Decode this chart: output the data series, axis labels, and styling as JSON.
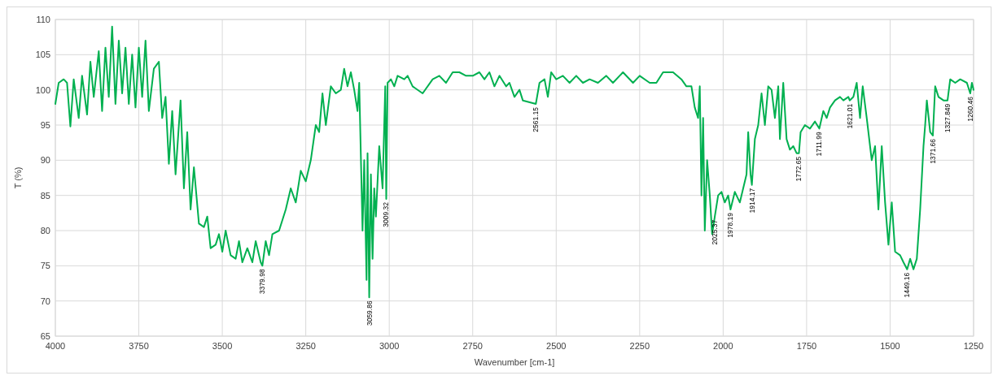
{
  "chart_data": {
    "type": "line",
    "xlabel": "Wavenumber [cm-1]",
    "ylabel": "T (%)",
    "xlim": [
      4000,
      1250
    ],
    "xticks": [
      4000,
      3750,
      3500,
      3250,
      3000,
      2750,
      2500,
      2250,
      2000,
      1750,
      1500,
      1250
    ],
    "ylim": [
      65,
      110
    ],
    "yticks": [
      65,
      70,
      75,
      80,
      85,
      90,
      95,
      100,
      105,
      110
    ],
    "grid": true,
    "marker": "none",
    "line_style": "solid",
    "series": [
      {
        "color": "#00b050",
        "x": [
          4000,
          3990,
          3975,
          3965,
          3955,
          3945,
          3930,
          3920,
          3905,
          3895,
          3885,
          3870,
          3860,
          3850,
          3840,
          3830,
          3820,
          3810,
          3800,
          3790,
          3780,
          3770,
          3760,
          3750,
          3740,
          3730,
          3720,
          3705,
          3690,
          3680,
          3670,
          3660,
          3650,
          3640,
          3625,
          3615,
          3605,
          3595,
          3585,
          3570,
          3555,
          3545,
          3535,
          3520,
          3510,
          3500,
          3490,
          3475,
          3460,
          3450,
          3440,
          3425,
          3410,
          3400,
          3385,
          3380,
          3370,
          3360,
          3350,
          3330,
          3310,
          3295,
          3280,
          3265,
          3250,
          3235,
          3220,
          3210,
          3200,
          3190,
          3175,
          3160,
          3145,
          3135,
          3125,
          3115,
          3105,
          3095,
          3090,
          3080,
          3075,
          3068,
          3065,
          3060,
          3055,
          3050,
          3045,
          3040,
          3030,
          3020,
          3012,
          3009,
          3005,
          2995,
          2985,
          2975,
          2955,
          2945,
          2930,
          2900,
          2870,
          2850,
          2830,
          2810,
          2790,
          2770,
          2750,
          2730,
          2715,
          2700,
          2685,
          2670,
          2650,
          2640,
          2625,
          2610,
          2600,
          2561,
          2550,
          2535,
          2525,
          2515,
          2500,
          2480,
          2460,
          2440,
          2420,
          2400,
          2375,
          2350,
          2330,
          2300,
          2270,
          2250,
          2220,
          2200,
          2180,
          2150,
          2125,
          2110,
          2095,
          2085,
          2075,
          2070,
          2065,
          2060,
          2055,
          2048,
          2040,
          2033,
          2025,
          2015,
          2005,
          1995,
          1985,
          1978,
          1965,
          1950,
          1940,
          1930,
          1925,
          1918,
          1914,
          1905,
          1895,
          1885,
          1875,
          1865,
          1855,
          1845,
          1835,
          1830,
          1820,
          1810,
          1800,
          1790,
          1780,
          1773,
          1768,
          1755,
          1740,
          1725,
          1712,
          1700,
          1690,
          1680,
          1665,
          1650,
          1640,
          1625,
          1621,
          1610,
          1600,
          1590,
          1582,
          1570,
          1555,
          1545,
          1535,
          1525,
          1515,
          1505,
          1495,
          1485,
          1470,
          1460,
          1449,
          1440,
          1430,
          1420,
          1410,
          1400,
          1395,
          1390,
          1380,
          1372,
          1365,
          1355,
          1340,
          1328,
          1320,
          1305,
          1290,
          1270,
          1260,
          1255,
          1250
        ],
        "values": [
          98,
          101,
          101.5,
          101,
          94.8,
          101.5,
          96,
          102,
          96.5,
          104,
          99,
          105.5,
          97,
          106,
          99,
          109,
          98,
          107,
          99.5,
          106,
          98,
          105,
          97.5,
          106,
          99,
          107,
          97,
          103,
          104,
          96,
          99,
          89.5,
          97,
          88,
          98.5,
          86,
          94,
          83,
          89,
          81,
          80.5,
          82,
          77.5,
          78,
          79.5,
          77,
          80,
          76.5,
          76,
          78.5,
          75.5,
          77.5,
          75.5,
          78.5,
          75.5,
          75,
          78.5,
          76.5,
          79.5,
          80,
          83,
          86,
          84,
          88.5,
          87,
          90,
          95,
          94,
          99.5,
          95,
          100.5,
          99.5,
          100,
          103,
          100.5,
          102.5,
          100,
          97,
          101,
          80,
          90,
          73,
          91,
          70.5,
          88,
          76,
          86,
          82,
          92,
          86,
          100.5,
          84.5,
          101,
          101.5,
          100.5,
          102,
          101.5,
          102,
          100.5,
          99.5,
          101.5,
          102,
          101,
          102.5,
          102.5,
          102,
          102,
          102.5,
          101.5,
          102.5,
          100.5,
          102,
          100.5,
          101,
          99,
          100,
          98.5,
          98,
          101,
          101.5,
          99,
          102.5,
          101.5,
          102,
          101,
          102,
          101,
          101.5,
          101,
          102,
          101,
          102.5,
          101,
          102,
          101,
          101,
          102.5,
          102.5,
          101.5,
          100.5,
          100.5,
          97.5,
          96,
          100.5,
          85,
          96,
          80,
          90,
          85,
          79.5,
          82,
          85,
          85.5,
          84,
          85,
          83,
          85.5,
          84,
          86,
          88,
          94,
          88,
          86.5,
          93,
          95,
          99.5,
          95,
          100.5,
          100,
          96,
          100.5,
          93,
          101,
          93,
          91.5,
          92,
          91,
          91,
          94,
          95,
          94.5,
          95.5,
          94.5,
          97,
          96,
          97.5,
          98.5,
          99,
          98.5,
          99,
          98.5,
          99,
          101,
          96,
          100.5,
          96,
          90,
          92,
          83,
          92,
          84,
          78,
          84,
          77,
          76.5,
          75.5,
          74.5,
          76,
          74.5,
          76,
          83,
          92,
          95,
          98.5,
          94,
          93.5,
          100.5,
          99,
          98.5,
          98.5,
          101.5,
          101,
          101.5,
          101,
          99.5,
          101,
          100
        ]
      }
    ],
    "annotations": [
      {
        "text": "3379.98",
        "x": 3380,
        "y": 75
      },
      {
        "text": "3059.86",
        "x": 3060,
        "y": 70.5
      },
      {
        "text": "3009.32",
        "x": 3009,
        "y": 84.5
      },
      {
        "text": "2561.15",
        "x": 2561,
        "y": 98
      },
      {
        "text": "2025.37",
        "x": 2025,
        "y": 82
      },
      {
        "text": "1978.19",
        "x": 1978,
        "y": 83
      },
      {
        "text": "1914.17",
        "x": 1914,
        "y": 86.5
      },
      {
        "text": "1772.65",
        "x": 1773,
        "y": 91
      },
      {
        "text": "1711.99",
        "x": 1712,
        "y": 94.5
      },
      {
        "text": "1621.01",
        "x": 1621,
        "y": 98.5
      },
      {
        "text": "1449.16",
        "x": 1449,
        "y": 74.5
      },
      {
        "text": "1371.66",
        "x": 1372,
        "y": 93.5
      },
      {
        "text": "1327.849",
        "x": 1328,
        "y": 98.5
      },
      {
        "text": "1260.46",
        "x": 1260,
        "y": 99.5
      }
    ]
  }
}
